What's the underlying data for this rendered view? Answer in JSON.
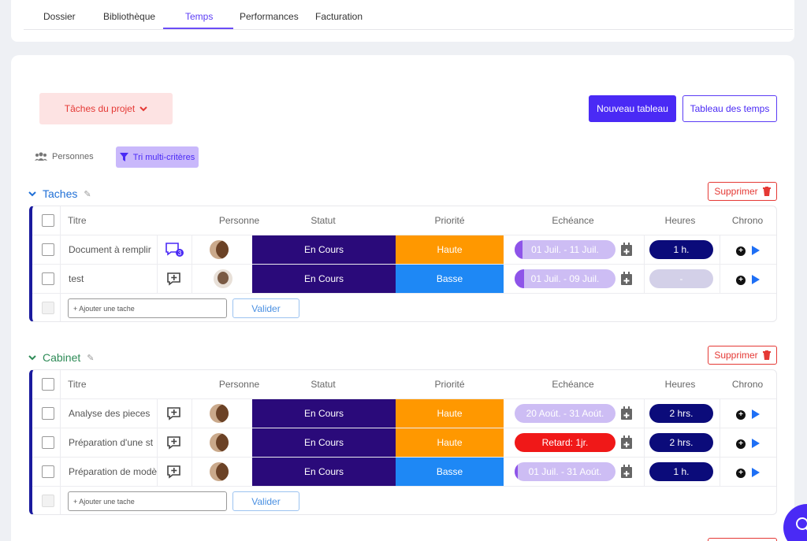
{
  "tabs": [
    "Dossier",
    "Bibliothèque",
    "Temps",
    "Performances",
    "Facturation"
  ],
  "active_tab": "Temps",
  "toolbar": {
    "project_dropdown": "Tâches du projet",
    "new_table": "Nouveau tableau",
    "time_table": "Tableau des temps"
  },
  "filters": {
    "people": "Personnes",
    "multi": "Tri multi-critères"
  },
  "columns": {
    "title": "Titre",
    "person": "Personne",
    "status": "Statut",
    "priority": "Priorité",
    "due": "Echéance",
    "hours": "Heures",
    "chrono": "Chrono"
  },
  "groups": [
    {
      "name": "Taches",
      "delete_label": "Supprimer",
      "add_placeholder": "+ Ajouter une tache",
      "validate_label": "Valider",
      "rows": [
        {
          "title": "Document à remplir",
          "comments": "3",
          "status": "En Cours",
          "priority": "Haute",
          "due": "01 Juil. - 11 Juil.",
          "hours": "1 h."
        },
        {
          "title": "test",
          "comments": "",
          "status": "En Cours",
          "priority": "Basse",
          "due": "01 Juil. - 09 Juil.",
          "hours": "-"
        }
      ]
    },
    {
      "name": "Cabinet",
      "delete_label": "Supprimer",
      "add_placeholder": "+ Ajouter une tache",
      "validate_label": "Valider",
      "rows": [
        {
          "title": "Analyse des pieces",
          "comments": "",
          "status": "En Cours",
          "priority": "Haute",
          "due": "20 Aoút. - 31 Aoút.",
          "hours": "2 hrs."
        },
        {
          "title": "Préparation d'une st",
          "comments": "",
          "status": "En Cours",
          "priority": "Haute",
          "due": "Retard: 1jr.",
          "hours": "2 hrs."
        },
        {
          "title": "Préparation de modè",
          "comments": "",
          "status": "En Cours",
          "priority": "Basse",
          "due": "01 Juil. - 31 Aoút.",
          "hours": "1 h."
        }
      ]
    }
  ],
  "colors": {
    "accent": "#4a2af5",
    "status": "#2a0a7a",
    "high": "#ff9800",
    "low": "#1e88f5",
    "danger": "#e53935"
  }
}
